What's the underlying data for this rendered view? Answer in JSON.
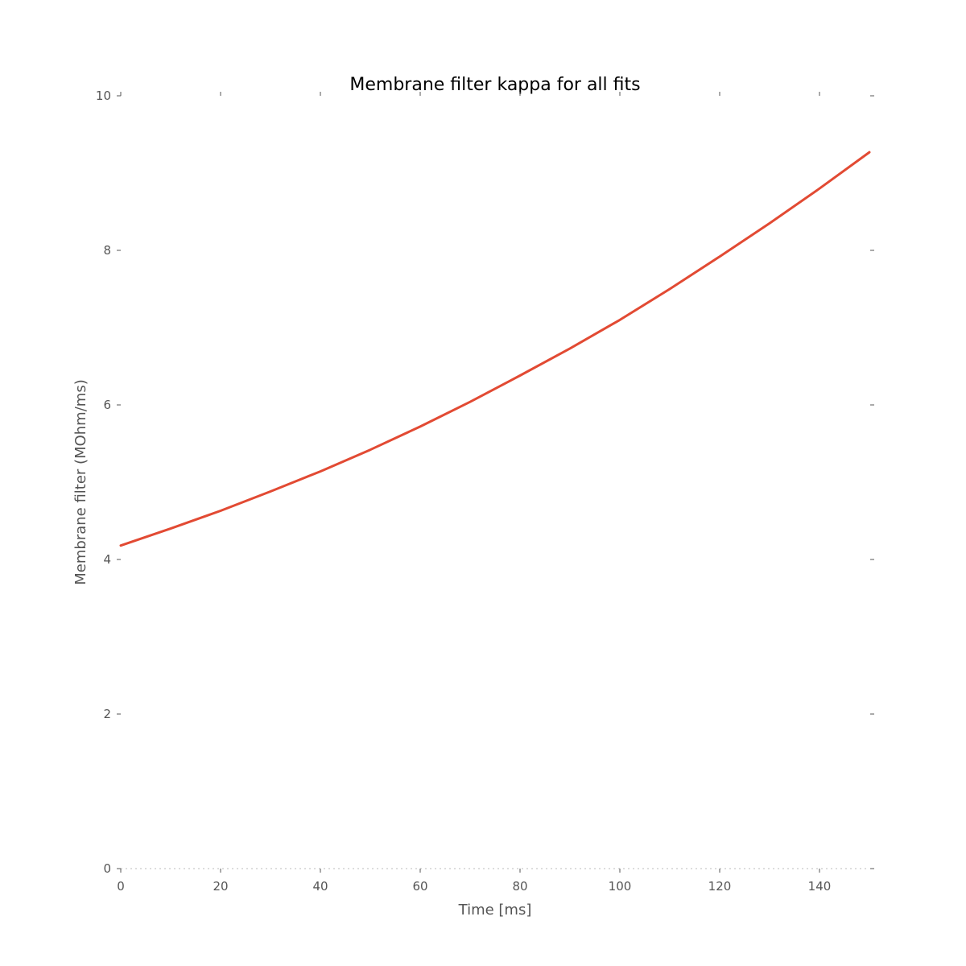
{
  "chart_data": {
    "type": "line",
    "title": "Membrane filter kappa for all fits",
    "xlabel": "Time [ms]",
    "ylabel": "Membrane filter (MOhm/ms)",
    "xlim": [
      0,
      150
    ],
    "ylim": [
      0,
      10
    ],
    "xticks": [
      0,
      20,
      40,
      60,
      80,
      100,
      120,
      140
    ],
    "yticks": [
      0,
      2,
      4,
      6,
      8,
      10
    ],
    "grid": false,
    "legend": "none",
    "series": [
      {
        "color": "#e24a33",
        "x": [
          0,
          10,
          20,
          30,
          40,
          50,
          60,
          70,
          80,
          90,
          100,
          110,
          120,
          130,
          140,
          150
        ],
        "y": [
          4.18,
          4.4,
          4.63,
          4.88,
          5.14,
          5.42,
          5.72,
          6.04,
          6.38,
          6.73,
          7.1,
          7.5,
          7.92,
          8.35,
          8.8,
          9.27
        ]
      }
    ]
  }
}
